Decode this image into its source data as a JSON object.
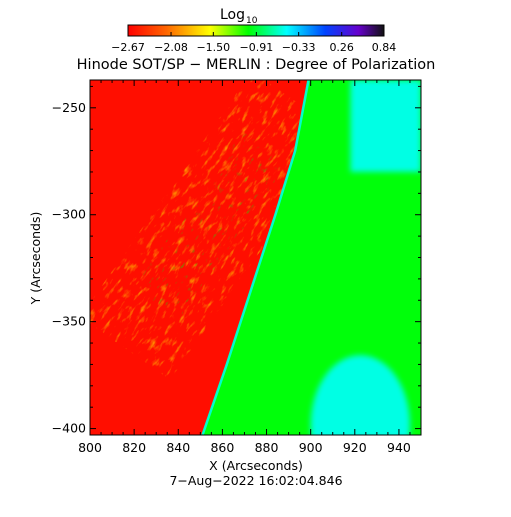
{
  "chart_data": {
    "type": "heatmap",
    "title": "Hinode SOT/SP − MERLIN : Degree of Polarization",
    "timestamp": "7−Aug−2022 16:02:04.846",
    "xlabel": "X (Arcseconds)",
    "ylabel": "Y (Arcseconds)",
    "xlim": [
      800,
      950
    ],
    "ylim": [
      -403,
      -237
    ],
    "x_ticks": [
      800,
      820,
      840,
      860,
      880,
      900,
      920,
      940
    ],
    "y_ticks": [
      -250,
      -300,
      -350,
      -400
    ],
    "x_tick_labels": [
      "800",
      "820",
      "840",
      "860",
      "880",
      "900",
      "920",
      "940"
    ],
    "y_tick_labels": [
      "−250",
      "−300",
      "−350",
      "−400"
    ],
    "colorbar": {
      "label_main": "Log",
      "label_sub": "10",
      "range": [
        -2.67,
        0.84
      ],
      "tick_values": [
        -2.67,
        -2.08,
        -1.5,
        -0.91,
        -0.33,
        0.26,
        0.84
      ],
      "tick_labels": [
        "−2.67",
        "−2.08",
        "−1.50",
        "−0.91",
        "−0.33",
        "0.26",
        "0.84"
      ],
      "colors": [
        "#ff0000",
        "#ff6600",
        "#ffff00",
        "#00ff00",
        "#00ffff",
        "#0044ff",
        "#6600cc",
        "#111111"
      ]
    },
    "limb": {
      "points": [
        [
          851,
          -403
        ],
        [
          862,
          -370
        ],
        [
          873,
          -335
        ],
        [
          884,
          -300
        ],
        [
          893,
          -270
        ],
        [
          899,
          -237
        ]
      ],
      "disk_value": -2.6,
      "offlimb_value": -1.0
    },
    "regions": {
      "off_disk_blue_upper": {
        "x": [
          918,
          950
        ],
        "y": [
          -280,
          -237
        ],
        "value": -0.55
      },
      "off_disk_blue_lower": {
        "x": [
          900,
          945
        ],
        "y": [
          -403,
          -375
        ],
        "value": -0.55
      },
      "active_region_center": [
        855,
        -305
      ],
      "active_region_value": -1.5
    }
  }
}
